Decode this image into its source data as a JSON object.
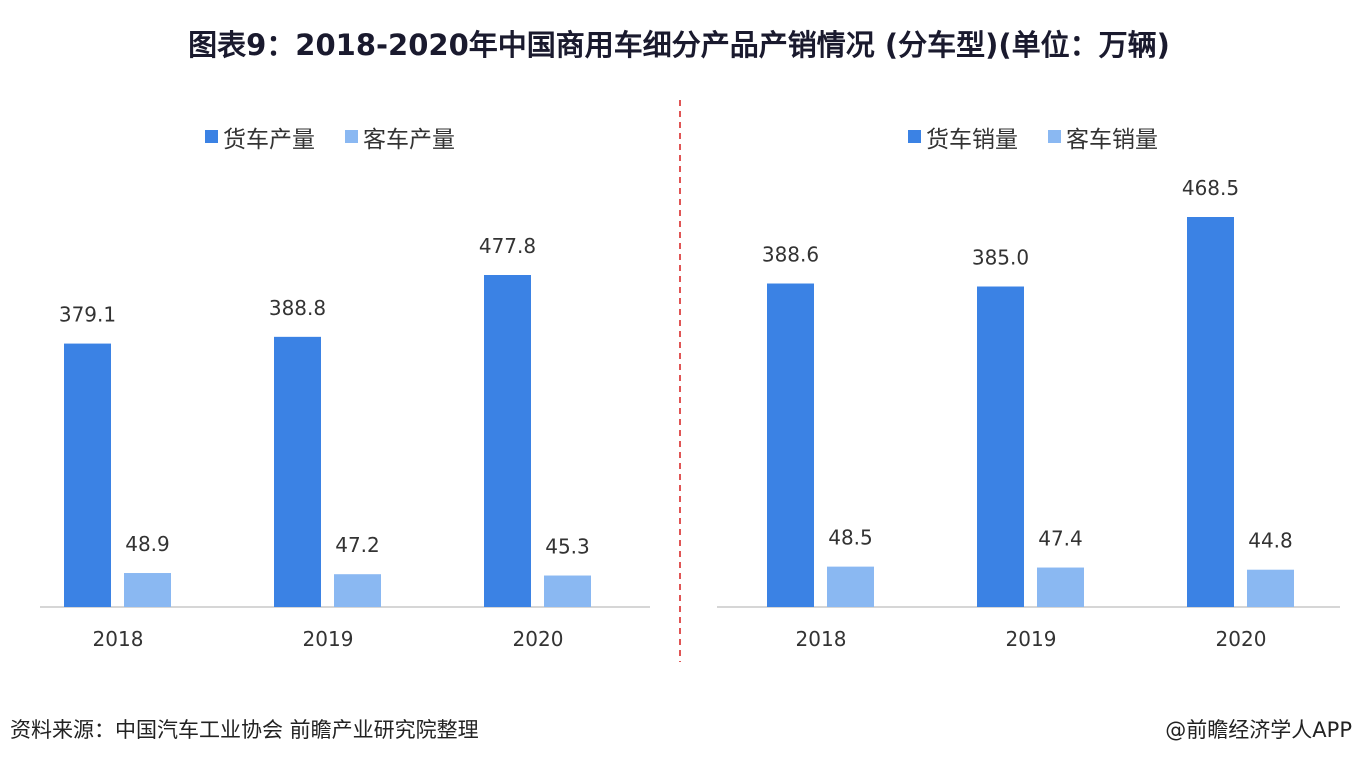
{
  "title": "图表9：2018-2020年中国商用车细分产品产销情况 (分车型)(单位：万辆)",
  "source": "资料来源：中国汽车工业协会 前瞻产业研究院整理",
  "credit": "@前瞻经济学人APP",
  "colors": {
    "truck": "#3b82e4",
    "bus": "#8ab8f2",
    "divider": "#e05555",
    "axis": "#c8c8c8"
  },
  "chart_data": [
    {
      "type": "bar",
      "categories": [
        "2018",
        "2019",
        "2020"
      ],
      "series": [
        {
          "name": "货车产量",
          "values": [
            379.1,
            388.8,
            477.8
          ]
        },
        {
          "name": "客车产量",
          "values": [
            48.9,
            47.2,
            45.3
          ]
        }
      ],
      "legend": "top",
      "grid": false
    },
    {
      "type": "bar",
      "categories": [
        "2018",
        "2019",
        "2020"
      ],
      "series": [
        {
          "name": "货车销量",
          "values": [
            388.6,
            385.0,
            468.5
          ]
        },
        {
          "name": "客车销量",
          "values": [
            48.5,
            47.4,
            44.8
          ]
        }
      ],
      "legend": "top",
      "grid": false
    }
  ]
}
